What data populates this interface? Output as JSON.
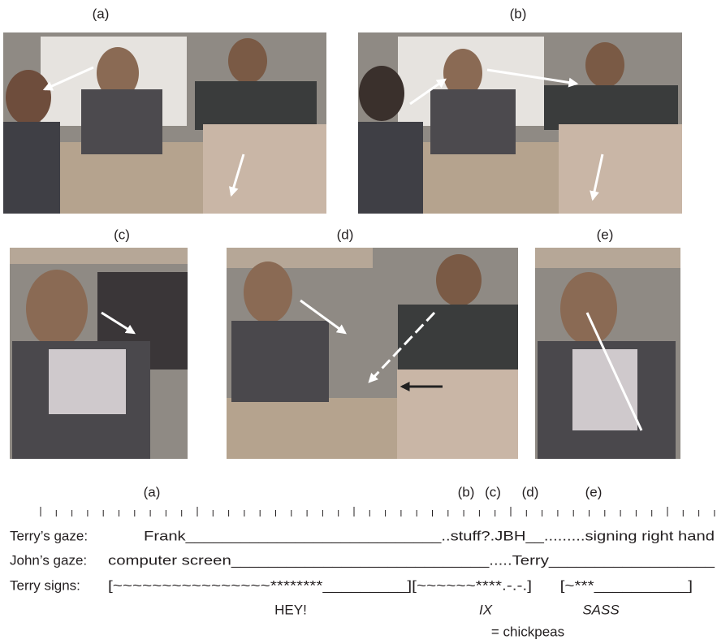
{
  "panels": [
    {
      "label": "(a)"
    },
    {
      "label": "(b)"
    },
    {
      "label": "(c)"
    },
    {
      "label": "(d)"
    },
    {
      "label": "(e)"
    }
  ],
  "timeline": {
    "labels": [
      "(a)",
      "(b)",
      "(c)",
      "(d)",
      "(e)"
    ]
  },
  "rows": [
    {
      "label": "Terry’s gaze:",
      "text": "Frank____________________________..stuff?.JBH__.........signing right hand"
    },
    {
      "label": "John’s gaze:",
      "text": "computer screen____________________________.....Terry__________________"
    },
    {
      "label": "Terry signs:",
      "text": "[~~~~~~~~~~~~~~~~********_________][~~~~~~****.-.-.]      [~***__________]"
    }
  ],
  "gloss": [
    "HEY!",
    "IX",
    "SASS",
    "= chickpeas"
  ]
}
